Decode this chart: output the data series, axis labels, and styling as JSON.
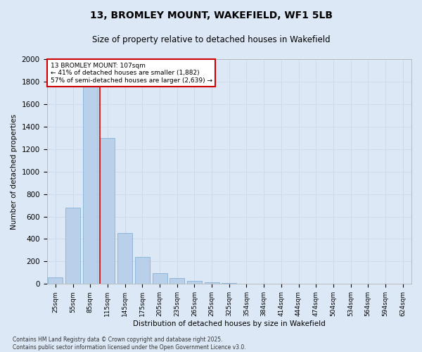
{
  "title_line1": "13, BROMLEY MOUNT, WAKEFIELD, WF1 5LB",
  "title_line2": "Size of property relative to detached houses in Wakefield",
  "xlabel": "Distribution of detached houses by size in Wakefield",
  "ylabel": "Number of detached properties",
  "categories": [
    "25sqm",
    "55sqm",
    "85sqm",
    "115sqm",
    "145sqm",
    "175sqm",
    "205sqm",
    "235sqm",
    "265sqm",
    "295sqm",
    "325sqm",
    "354sqm",
    "384sqm",
    "414sqm",
    "444sqm",
    "474sqm",
    "504sqm",
    "534sqm",
    "564sqm",
    "594sqm",
    "624sqm"
  ],
  "values": [
    60,
    680,
    1820,
    1300,
    450,
    240,
    95,
    55,
    25,
    15,
    10,
    0,
    0,
    0,
    0,
    0,
    0,
    0,
    0,
    0,
    0
  ],
  "bar_color": "#b8d0ea",
  "bar_edge_color": "#7aaad0",
  "grid_color": "#ccdaea",
  "annotation_line1": "13 BROMLEY MOUNT: 107sqm",
  "annotation_line2": "← 41% of detached houses are smaller (1,882)",
  "annotation_line3": "57% of semi-detached houses are larger (2,639) →",
  "annotation_box_color": "#ffffff",
  "annotation_box_edge_color": "#cc0000",
  "subject_line_color": "#cc0000",
  "ylim": [
    0,
    2000
  ],
  "yticks": [
    0,
    200,
    400,
    600,
    800,
    1000,
    1200,
    1400,
    1600,
    1800,
    2000
  ],
  "footer_line1": "Contains HM Land Registry data © Crown copyright and database right 2025.",
  "footer_line2": "Contains public sector information licensed under the Open Government Licence v3.0.",
  "bg_color": "#dce8f5"
}
